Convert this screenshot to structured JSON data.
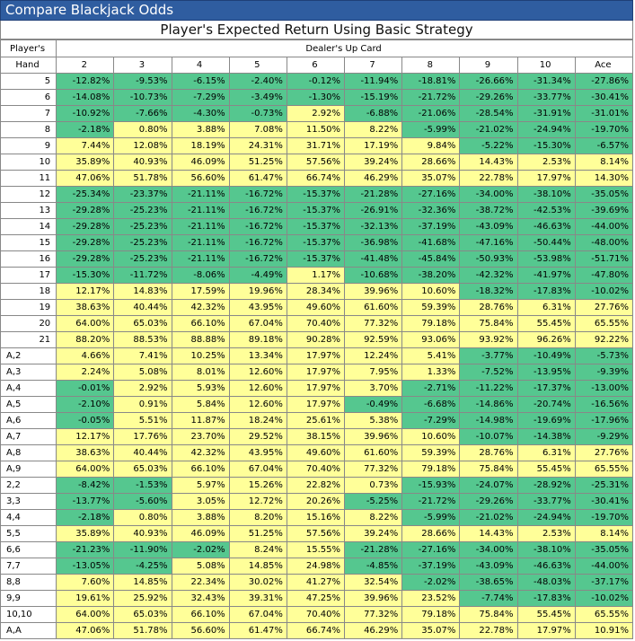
{
  "window": {
    "title": "Compare Blackjack Odds"
  },
  "table": {
    "title": "Player's Expected Return Using Basic Strategy",
    "player_header_line1": "Player's",
    "player_header_line2": "Hand",
    "dealer_header": "Dealer's Up Card",
    "columns": [
      "2",
      "3",
      "4",
      "5",
      "6",
      "7",
      "8",
      "9",
      "10",
      "Ace"
    ],
    "colors": {
      "negative": "#55c78f",
      "positive": "#ffff99"
    },
    "rows": [
      {
        "hand": "5",
        "values": [
          "-12.82%",
          "-9.53%",
          "-6.15%",
          "-2.40%",
          "-0.12%",
          "-11.94%",
          "-18.81%",
          "-26.66%",
          "-31.34%",
          "-27.86%"
        ]
      },
      {
        "hand": "6",
        "values": [
          "-14.08%",
          "-10.73%",
          "-7.29%",
          "-3.49%",
          "-1.30%",
          "-15.19%",
          "-21.72%",
          "-29.26%",
          "-33.77%",
          "-30.41%"
        ]
      },
      {
        "hand": "7",
        "values": [
          "-10.92%",
          "-7.66%",
          "-4.30%",
          "-0.73%",
          "2.92%",
          "-6.88%",
          "-21.06%",
          "-28.54%",
          "-31.91%",
          "-31.01%"
        ]
      },
      {
        "hand": "8",
        "values": [
          "-2.18%",
          "0.80%",
          "3.88%",
          "7.08%",
          "11.50%",
          "8.22%",
          "-5.99%",
          "-21.02%",
          "-24.94%",
          "-19.70%"
        ]
      },
      {
        "hand": "9",
        "values": [
          "7.44%",
          "12.08%",
          "18.19%",
          "24.31%",
          "31.71%",
          "17.19%",
          "9.84%",
          "-5.22%",
          "-15.30%",
          "-6.57%"
        ]
      },
      {
        "hand": "10",
        "values": [
          "35.89%",
          "40.93%",
          "46.09%",
          "51.25%",
          "57.56%",
          "39.24%",
          "28.66%",
          "14.43%",
          "2.53%",
          "8.14%"
        ]
      },
      {
        "hand": "11",
        "values": [
          "47.06%",
          "51.78%",
          "56.60%",
          "61.47%",
          "66.74%",
          "46.29%",
          "35.07%",
          "22.78%",
          "17.97%",
          "14.30%"
        ]
      },
      {
        "hand": "12",
        "values": [
          "-25.34%",
          "-23.37%",
          "-21.11%",
          "-16.72%",
          "-15.37%",
          "-21.28%",
          "-27.16%",
          "-34.00%",
          "-38.10%",
          "-35.05%"
        ]
      },
      {
        "hand": "13",
        "values": [
          "-29.28%",
          "-25.23%",
          "-21.11%",
          "-16.72%",
          "-15.37%",
          "-26.91%",
          "-32.36%",
          "-38.72%",
          "-42.53%",
          "-39.69%"
        ]
      },
      {
        "hand": "14",
        "values": [
          "-29.28%",
          "-25.23%",
          "-21.11%",
          "-16.72%",
          "-15.37%",
          "-32.13%",
          "-37.19%",
          "-43.09%",
          "-46.63%",
          "-44.00%"
        ]
      },
      {
        "hand": "15",
        "values": [
          "-29.28%",
          "-25.23%",
          "-21.11%",
          "-16.72%",
          "-15.37%",
          "-36.98%",
          "-41.68%",
          "-47.16%",
          "-50.44%",
          "-48.00%"
        ]
      },
      {
        "hand": "16",
        "values": [
          "-29.28%",
          "-25.23%",
          "-21.11%",
          "-16.72%",
          "-15.37%",
          "-41.48%",
          "-45.84%",
          "-50.93%",
          "-53.98%",
          "-51.71%"
        ]
      },
      {
        "hand": "17",
        "values": [
          "-15.30%",
          "-11.72%",
          "-8.06%",
          "-4.49%",
          "1.17%",
          "-10.68%",
          "-38.20%",
          "-42.32%",
          "-41.97%",
          "-47.80%"
        ]
      },
      {
        "hand": "18",
        "values": [
          "12.17%",
          "14.83%",
          "17.59%",
          "19.96%",
          "28.34%",
          "39.96%",
          "10.60%",
          "-18.32%",
          "-17.83%",
          "-10.02%"
        ]
      },
      {
        "hand": "19",
        "values": [
          "38.63%",
          "40.44%",
          "42.32%",
          "43.95%",
          "49.60%",
          "61.60%",
          "59.39%",
          "28.76%",
          "6.31%",
          "27.76%"
        ]
      },
      {
        "hand": "20",
        "values": [
          "64.00%",
          "65.03%",
          "66.10%",
          "67.04%",
          "70.40%",
          "77.32%",
          "79.18%",
          "75.84%",
          "55.45%",
          "65.55%"
        ]
      },
      {
        "hand": "21",
        "values": [
          "88.20%",
          "88.53%",
          "88.88%",
          "89.18%",
          "90.28%",
          "92.59%",
          "93.06%",
          "93.92%",
          "96.26%",
          "92.22%"
        ]
      },
      {
        "hand": "A,2",
        "values": [
          "4.66%",
          "7.41%",
          "10.25%",
          "13.34%",
          "17.97%",
          "12.24%",
          "5.41%",
          "-3.77%",
          "-10.49%",
          "-5.73%"
        ]
      },
      {
        "hand": "A,3",
        "values": [
          "2.24%",
          "5.08%",
          "8.01%",
          "12.60%",
          "17.97%",
          "7.95%",
          "1.33%",
          "-7.52%",
          "-13.95%",
          "-9.39%"
        ]
      },
      {
        "hand": "A,4",
        "values": [
          "-0.01%",
          "2.92%",
          "5.93%",
          "12.60%",
          "17.97%",
          "3.70%",
          "-2.71%",
          "-11.22%",
          "-17.37%",
          "-13.00%"
        ]
      },
      {
        "hand": "A,5",
        "values": [
          "-2.10%",
          "0.91%",
          "5.84%",
          "12.60%",
          "17.97%",
          "-0.49%",
          "-6.68%",
          "-14.86%",
          "-20.74%",
          "-16.56%"
        ]
      },
      {
        "hand": "A,6",
        "values": [
          "-0.05%",
          "5.51%",
          "11.87%",
          "18.24%",
          "25.61%",
          "5.38%",
          "-7.29%",
          "-14.98%",
          "-19.69%",
          "-17.96%"
        ]
      },
      {
        "hand": "A,7",
        "values": [
          "12.17%",
          "17.76%",
          "23.70%",
          "29.52%",
          "38.15%",
          "39.96%",
          "10.60%",
          "-10.07%",
          "-14.38%",
          "-9.29%"
        ]
      },
      {
        "hand": "A,8",
        "values": [
          "38.63%",
          "40.44%",
          "42.32%",
          "43.95%",
          "49.60%",
          "61.60%",
          "59.39%",
          "28.76%",
          "6.31%",
          "27.76%"
        ]
      },
      {
        "hand": "A,9",
        "values": [
          "64.00%",
          "65.03%",
          "66.10%",
          "67.04%",
          "70.40%",
          "77.32%",
          "79.18%",
          "75.84%",
          "55.45%",
          "65.55%"
        ]
      },
      {
        "hand": "2,2",
        "values": [
          "-8.42%",
          "-1.53%",
          "5.97%",
          "15.26%",
          "22.82%",
          "0.73%",
          "-15.93%",
          "-24.07%",
          "-28.92%",
          "-25.31%"
        ]
      },
      {
        "hand": "3,3",
        "values": [
          "-13.77%",
          "-5.60%",
          "3.05%",
          "12.72%",
          "20.26%",
          "-5.25%",
          "-21.72%",
          "-29.26%",
          "-33.77%",
          "-30.41%"
        ]
      },
      {
        "hand": "4,4",
        "values": [
          "-2.18%",
          "0.80%",
          "3.88%",
          "8.20%",
          "15.16%",
          "8.22%",
          "-5.99%",
          "-21.02%",
          "-24.94%",
          "-19.70%"
        ]
      },
      {
        "hand": "5,5",
        "values": [
          "35.89%",
          "40.93%",
          "46.09%",
          "51.25%",
          "57.56%",
          "39.24%",
          "28.66%",
          "14.43%",
          "2.53%",
          "8.14%"
        ]
      },
      {
        "hand": "6,6",
        "values": [
          "-21.23%",
          "-11.90%",
          "-2.02%",
          "8.24%",
          "15.55%",
          "-21.28%",
          "-27.16%",
          "-34.00%",
          "-38.10%",
          "-35.05%"
        ]
      },
      {
        "hand": "7,7",
        "values": [
          "-13.05%",
          "-4.25%",
          "5.08%",
          "14.85%",
          "24.98%",
          "-4.85%",
          "-37.19%",
          "-43.09%",
          "-46.63%",
          "-44.00%"
        ]
      },
      {
        "hand": "8,8",
        "values": [
          "7.60%",
          "14.85%",
          "22.34%",
          "30.02%",
          "41.27%",
          "32.54%",
          "-2.02%",
          "-38.65%",
          "-48.03%",
          "-37.17%"
        ]
      },
      {
        "hand": "9,9",
        "values": [
          "19.61%",
          "25.92%",
          "32.43%",
          "39.31%",
          "47.25%",
          "39.96%",
          "23.52%",
          "-7.74%",
          "-17.83%",
          "-10.02%"
        ]
      },
      {
        "hand": "10,10",
        "values": [
          "64.00%",
          "65.03%",
          "66.10%",
          "67.04%",
          "70.40%",
          "77.32%",
          "79.18%",
          "75.84%",
          "55.45%",
          "65.55%"
        ]
      },
      {
        "hand": "A,A",
        "values": [
          "47.06%",
          "51.78%",
          "56.60%",
          "61.47%",
          "66.74%",
          "46.29%",
          "35.07%",
          "22.78%",
          "17.97%",
          "10.91%"
        ]
      }
    ]
  }
}
